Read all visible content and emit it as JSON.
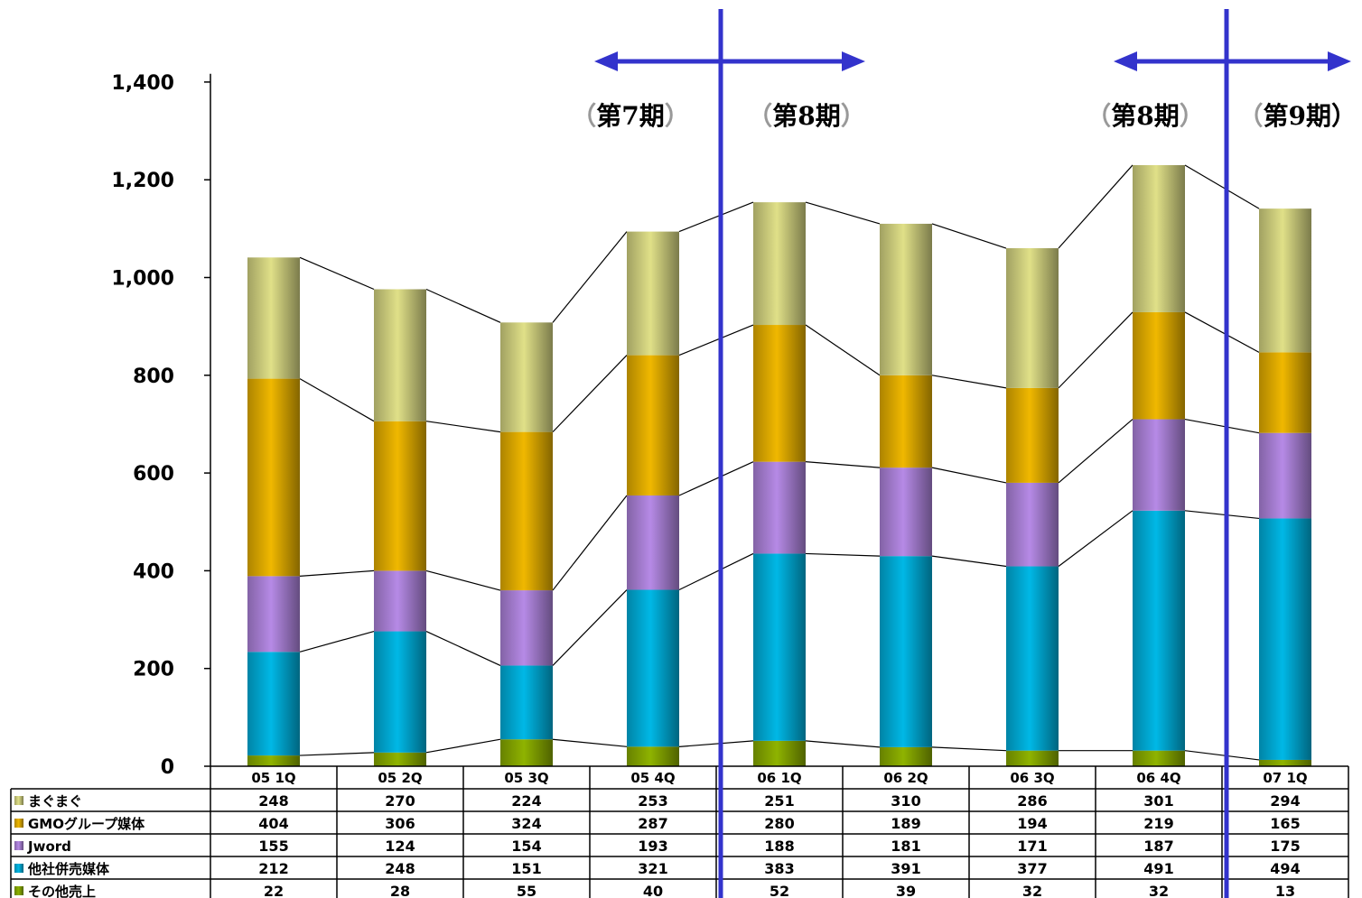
{
  "chart_data": {
    "type": "bar",
    "stacked": true,
    "categories": [
      "05 1Q",
      "05 2Q",
      "05 3Q",
      "05 4Q",
      "06 1Q",
      "06 2Q",
      "06 3Q",
      "06 4Q",
      "07 1Q"
    ],
    "series": [
      {
        "name": "その他売上",
        "color": "#8fb300",
        "values": [
          22,
          28,
          55,
          40,
          52,
          39,
          32,
          32,
          13
        ]
      },
      {
        "name": "他社併売媒体",
        "color": "#00b8e6",
        "values": [
          212,
          248,
          151,
          321,
          383,
          391,
          377,
          491,
          494
        ]
      },
      {
        "name": "Jword",
        "color": "#b68ae6",
        "values": [
          155,
          124,
          154,
          193,
          188,
          181,
          171,
          187,
          175
        ]
      },
      {
        "name": "GMOグループ媒体",
        "color": "#f0b800",
        "values": [
          404,
          306,
          324,
          287,
          280,
          189,
          194,
          219,
          165
        ]
      },
      {
        "name": "まぐまぐ",
        "color": "#e0e088",
        "values": [
          248,
          270,
          224,
          253,
          251,
          310,
          286,
          301,
          294
        ]
      }
    ],
    "yticks": [
      "0",
      "200",
      "400",
      "600",
      "800",
      "1,000",
      "1,200",
      "1,400"
    ],
    "ylim": [
      0,
      1500
    ],
    "legend_order": [
      "まぐまぐ",
      "GMOグループ媒体",
      "Jword",
      "他社併売媒体",
      "その他売上"
    ],
    "annotations": {
      "dividers_after_category": [
        3,
        7
      ],
      "period_labels": [
        "（第7期）",
        "（第8期）",
        "（第8期）",
        "（第9期）"
      ],
      "line_color": "#3333cc"
    }
  }
}
